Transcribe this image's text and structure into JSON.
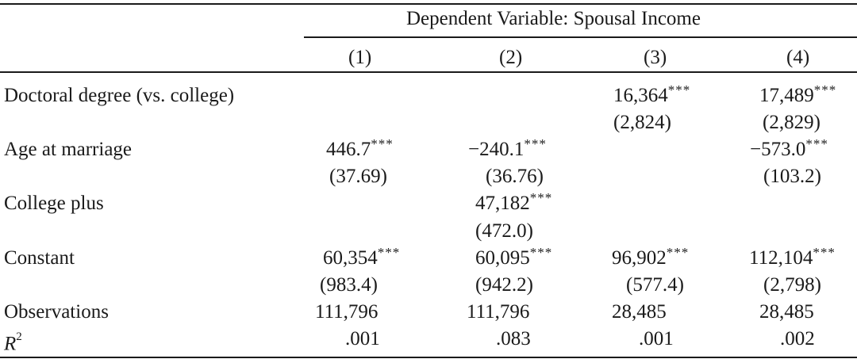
{
  "dependent_variable_header": "Dependent Variable: Spousal Income",
  "columns": [
    "(1)",
    "(2)",
    "(3)",
    "(4)"
  ],
  "rows": [
    {
      "label": "Doctoral degree (vs. college)",
      "coef": [
        "",
        "",
        "16,364",
        "17,489"
      ],
      "coef_stars": [
        "",
        "",
        "***",
        "***"
      ],
      "se": [
        "",
        "",
        "(2,824)",
        "(2,829)"
      ]
    },
    {
      "label": "Age at marriage",
      "coef": [
        "446.7",
        "−240.1",
        "",
        "−573.0"
      ],
      "coef_stars": [
        "***",
        "***",
        "",
        "***"
      ],
      "se": [
        "(37.69)",
        "(36.76)",
        "",
        "(103.2)"
      ]
    },
    {
      "label": "College plus",
      "coef": [
        "",
        "47,182",
        "",
        ""
      ],
      "coef_stars": [
        "",
        "***",
        "",
        ""
      ],
      "se": [
        "",
        "(472.0)",
        "",
        ""
      ]
    },
    {
      "label": "Constant",
      "coef": [
        "60,354",
        "60,095",
        "96,902",
        "112,104"
      ],
      "coef_stars": [
        "***",
        "***",
        "***",
        "***"
      ],
      "se": [
        "(983.4)",
        "(942.2)",
        "(577.4)",
        "(2,798)"
      ]
    }
  ],
  "observations": {
    "label": "Observations",
    "values": [
      "111,796",
      "111,796",
      "28,485",
      "28,485"
    ]
  },
  "r_squared": {
    "label_base": "R",
    "label_sup": "2",
    "values": [
      ".001",
      ".083",
      ".001",
      ".002"
    ]
  }
}
